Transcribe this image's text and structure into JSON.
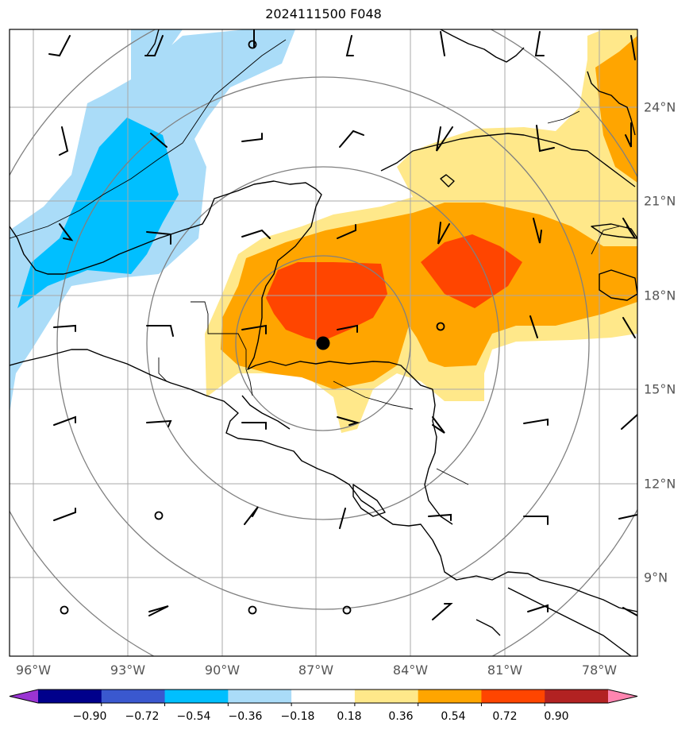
{
  "title": "2024111500 F048",
  "lat_ticks": [
    "24°N",
    "21°N",
    "18°N",
    "15°N",
    "12°N",
    "9°N"
  ],
  "lon_ticks": [
    "96°W",
    "93°W",
    "90°W",
    "87°W",
    "84°W",
    "81°W",
    "78°W"
  ],
  "colorbar": {
    "labels": [
      "−0.90",
      "−0.72",
      "−0.54",
      "−0.36",
      "−0.18",
      "0.18",
      "0.36",
      "0.54",
      "0.72",
      "0.90"
    ],
    "colors": [
      "#9a34d3",
      "#00008b",
      "#3a58cf",
      "#00bfff",
      "#aadcf8",
      "#ffffff",
      "#ffe88a",
      "#ffa500",
      "#ff4500",
      "#b22222",
      "#ff85b0"
    ]
  },
  "field_colors": {
    "light_blue": "#aadcf8",
    "blue": "#00bfff",
    "light_yellow": "#ffe88a",
    "orange": "#ffa500",
    "red_orange": "#ff4500"
  },
  "storm_marker": "filled-black-circle",
  "range_rings": 4
}
